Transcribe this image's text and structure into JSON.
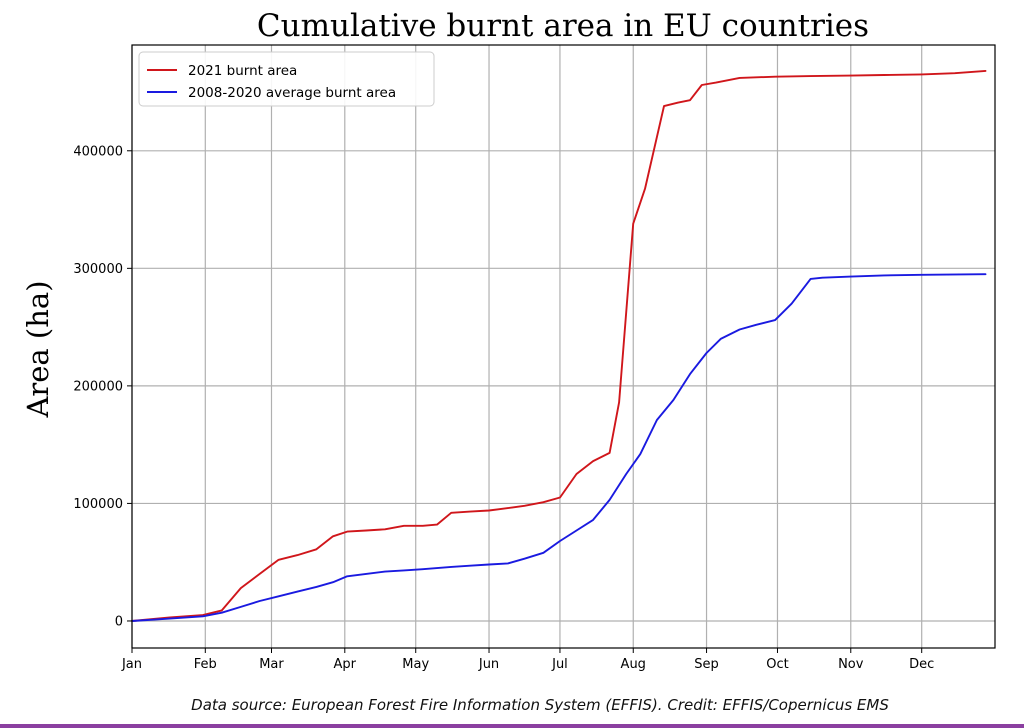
{
  "chart_data": {
    "type": "line",
    "title": "Cumulative burnt area in EU countries",
    "xlabel": "",
    "ylabel": "Area (ha)",
    "x_ticks": [
      "Jan",
      "Feb",
      "Mar",
      "Apr",
      "May",
      "Jun",
      "Jul",
      "Aug",
      "Sep",
      "Oct",
      "Nov",
      "Dec"
    ],
    "y_ticks": [
      0,
      100000,
      200000,
      300000,
      400000
    ],
    "ylim": [
      -23000,
      490000
    ],
    "grid": true,
    "legend_position": "top-left",
    "series": [
      {
        "name": "2021 burnt area",
        "color": "#d0161b",
        "x": [
          "01-01",
          "01-17",
          "01-31",
          "02-08",
          "02-16",
          "02-24",
          "03-04",
          "03-12",
          "03-20",
          "03-27",
          "04-02",
          "04-10",
          "04-18",
          "04-26",
          "05-04",
          "05-10",
          "05-16",
          "05-24",
          "06-01",
          "06-09",
          "06-16",
          "06-24",
          "07-01",
          "07-08",
          "07-15",
          "07-22",
          "07-26",
          "08-01",
          "08-06",
          "08-14",
          "08-20",
          "08-25",
          "08-30",
          "09-05",
          "09-15",
          "09-30",
          "10-15",
          "11-01",
          "11-15",
          "12-01",
          "12-15",
          "12-28"
        ],
        "y": [
          0,
          3000,
          5000,
          9000,
          28000,
          40000,
          52000,
          56000,
          61000,
          72000,
          76000,
          77000,
          78000,
          81000,
          81000,
          82000,
          92000,
          93000,
          94000,
          96000,
          98000,
          101000,
          105000,
          125000,
          136000,
          143000,
          186000,
          338000,
          368000,
          438000,
          441000,
          443000,
          456000,
          458000,
          462000,
          463000,
          463500,
          464000,
          464500,
          465000,
          466000,
          468000
        ]
      },
      {
        "name": "2008-2020 average burnt area",
        "color": "#1a1ae0",
        "x": [
          "01-01",
          "01-17",
          "01-31",
          "02-08",
          "02-16",
          "02-24",
          "03-04",
          "03-12",
          "03-20",
          "03-27",
          "04-02",
          "04-10",
          "04-18",
          "04-26",
          "05-04",
          "05-16",
          "05-24",
          "06-01",
          "06-09",
          "06-16",
          "06-24",
          "07-01",
          "07-08",
          "07-15",
          "07-22",
          "07-29",
          "08-04",
          "08-11",
          "08-18",
          "08-25",
          "09-01",
          "09-07",
          "09-15",
          "09-22",
          "09-30",
          "10-07",
          "10-15",
          "10-20",
          "11-01",
          "11-15",
          "12-01",
          "12-28"
        ],
        "y": [
          0,
          2000,
          4000,
          7000,
          12000,
          17000,
          21000,
          25000,
          29000,
          33000,
          38000,
          40000,
          42000,
          43000,
          44000,
          46000,
          47000,
          48000,
          49000,
          53000,
          58000,
          68000,
          77000,
          86000,
          103000,
          125000,
          142000,
          171000,
          188000,
          210000,
          228000,
          240000,
          248000,
          252000,
          256000,
          270000,
          291000,
          292000,
          293000,
          294000,
          294500,
          295000
        ]
      }
    ]
  },
  "footer": {
    "source": "Data source: European Forest Fire Information System (EFFIS). Credit: EFFIS/Copernicus EMS"
  }
}
